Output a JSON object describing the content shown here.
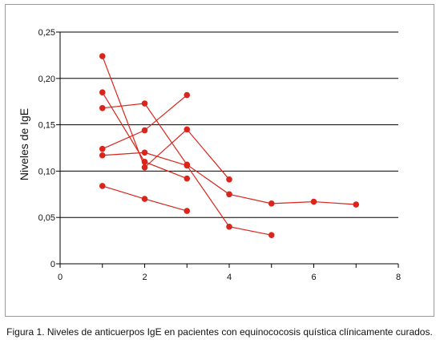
{
  "chart_data": {
    "type": "line",
    "xlabel": "",
    "ylabel": "Niveles de IgE",
    "xlim": [
      0,
      8
    ],
    "ylim": [
      0,
      0.25
    ],
    "xticks": [
      0,
      2,
      4,
      6,
      8
    ],
    "xtick_labels": [
      "0",
      "2",
      "4",
      "6",
      "8"
    ],
    "yticks": [
      0,
      0.05,
      0.1,
      0.15,
      0.2,
      0.25
    ],
    "ytick_labels": [
      "0",
      "0,05",
      "0,10",
      "0,15",
      "0,20",
      "0,25"
    ],
    "grid": "horizontal",
    "color": "#d9251c",
    "series": [
      {
        "x": [
          1,
          2,
          3
        ],
        "y": [
          0.185,
          0.11,
          0.092
        ]
      },
      {
        "x": [
          1,
          2,
          3,
          4
        ],
        "y": [
          0.224,
          0.104,
          0.145,
          0.091
        ]
      },
      {
        "x": [
          1,
          2,
          3,
          4,
          5,
          6,
          7
        ],
        "y": [
          0.168,
          0.173,
          0.107,
          0.075,
          0.065,
          0.067,
          0.064
        ]
      },
      {
        "x": [
          1,
          2,
          3
        ],
        "y": [
          0.124,
          0.144,
          0.182
        ]
      },
      {
        "x": [
          1,
          2,
          3,
          4,
          5
        ],
        "y": [
          0.117,
          0.12,
          0.106,
          0.04,
          0.031
        ]
      },
      {
        "x": [
          1,
          2,
          3
        ],
        "y": [
          0.084,
          0.07,
          0.057
        ]
      }
    ]
  },
  "caption": "Figura 1. Niveles de anticuerpos IgE en pacientes con equinococosis quística clínicamente curados."
}
